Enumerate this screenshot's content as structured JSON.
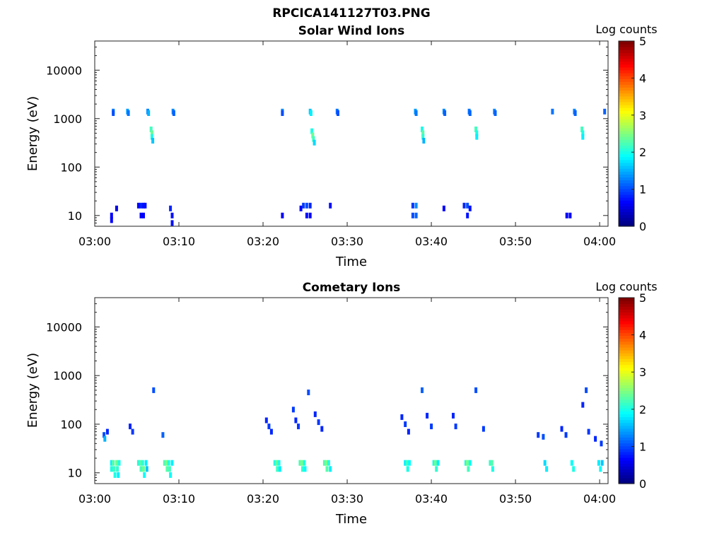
{
  "figure_title": "RPCICA141127T03.PNG",
  "chart_data": [
    {
      "type": "heatmap",
      "title": "Solar Wind Ions",
      "xlabel": "Time",
      "ylabel": "Energy (eV)",
      "x_ticks": [
        "03:00",
        "03:10",
        "03:20",
        "03:30",
        "03:40",
        "03:50",
        "04:00"
      ],
      "x_tick_minutes": [
        0,
        10,
        20,
        30,
        40,
        50,
        60
      ],
      "xlim_minutes": [
        0,
        61
      ],
      "y_ticks": [
        "10",
        "100",
        "1000",
        "10000"
      ],
      "y_tick_values": [
        10,
        100,
        1000,
        10000
      ],
      "ylim": [
        6,
        40000
      ],
      "yscale": "log",
      "colorbar": {
        "label": "Log counts",
        "ticks": [
          "0",
          "1",
          "2",
          "3",
          "4",
          "5"
        ],
        "range": [
          0,
          5
        ],
        "colormap": "jet"
      },
      "cells": [
        [
          2.2,
          1400,
          1.2
        ],
        [
          2.2,
          1300,
          1.0
        ],
        [
          3.9,
          1400,
          1.4
        ],
        [
          4.0,
          1300,
          1.2
        ],
        [
          6.3,
          1400,
          1.3
        ],
        [
          6.4,
          1300,
          1.5
        ],
        [
          6.7,
          600,
          2.2
        ],
        [
          6.8,
          500,
          2.4
        ],
        [
          6.8,
          420,
          2.0
        ],
        [
          6.9,
          350,
          1.6
        ],
        [
          9.3,
          1400,
          1.3
        ],
        [
          9.4,
          1300,
          1.1
        ],
        [
          22.3,
          1400,
          1.3
        ],
        [
          22.3,
          1300,
          1.0
        ],
        [
          25.6,
          1400,
          1.6
        ],
        [
          25.7,
          1300,
          1.8
        ],
        [
          25.8,
          550,
          2.0
        ],
        [
          25.9,
          450,
          2.4
        ],
        [
          26.0,
          380,
          2.2
        ],
        [
          26.1,
          320,
          1.7
        ],
        [
          28.8,
          1400,
          1.2
        ],
        [
          28.9,
          1300,
          1.0
        ],
        [
          38.1,
          1400,
          1.4
        ],
        [
          38.2,
          1300,
          1.2
        ],
        [
          38.9,
          600,
          2.0
        ],
        [
          39.0,
          500,
          2.3
        ],
        [
          39.0,
          420,
          2.1
        ],
        [
          39.1,
          350,
          1.5
        ],
        [
          41.5,
          1400,
          1.3
        ],
        [
          41.6,
          1300,
          1.1
        ],
        [
          44.5,
          1400,
          1.2
        ],
        [
          44.6,
          1300,
          1.1
        ],
        [
          45.3,
          600,
          2.2
        ],
        [
          45.4,
          500,
          2.0
        ],
        [
          45.4,
          420,
          1.8
        ],
        [
          47.5,
          1400,
          1.3
        ],
        [
          47.6,
          1300,
          1.1
        ],
        [
          54.4,
          1400,
          1.2
        ],
        [
          57.0,
          1400,
          1.3
        ],
        [
          57.1,
          1300,
          1.1
        ],
        [
          57.9,
          600,
          2.2
        ],
        [
          58.0,
          500,
          2.0
        ],
        [
          58.0,
          420,
          1.8
        ],
        [
          60.6,
          1400,
          1.1
        ],
        [
          2.0,
          10,
          0.6
        ],
        [
          2.0,
          8,
          0.6
        ],
        [
          2.6,
          14,
          0.5
        ],
        [
          5.2,
          16,
          0.6
        ],
        [
          5.5,
          16,
          0.8
        ],
        [
          5.8,
          16,
          0.7
        ],
        [
          6.0,
          16,
          0.7
        ],
        [
          5.5,
          10,
          0.6
        ],
        [
          5.8,
          10,
          0.6
        ],
        [
          9.0,
          14,
          0.8
        ],
        [
          9.2,
          10,
          0.7
        ],
        [
          9.2,
          7,
          0.7
        ],
        [
          22.3,
          10,
          0.6
        ],
        [
          24.5,
          14,
          0.6
        ],
        [
          24.8,
          16,
          0.9
        ],
        [
          25.2,
          16,
          1.0
        ],
        [
          25.2,
          10,
          0.7
        ],
        [
          25.6,
          16,
          0.8
        ],
        [
          25.6,
          10,
          0.6
        ],
        [
          28.0,
          16,
          0.7
        ],
        [
          37.8,
          16,
          0.9
        ],
        [
          37.8,
          10,
          1.0
        ],
        [
          38.2,
          16,
          1.3
        ],
        [
          38.2,
          10,
          1.1
        ],
        [
          41.5,
          14,
          0.6
        ],
        [
          43.9,
          16,
          0.8
        ],
        [
          44.3,
          16,
          1.0
        ],
        [
          44.3,
          10,
          0.7
        ],
        [
          44.6,
          14,
          0.7
        ],
        [
          56.1,
          10,
          0.6
        ],
        [
          56.5,
          10,
          0.6
        ]
      ]
    },
    {
      "type": "heatmap",
      "title": "Cometary Ions",
      "xlabel": "Time",
      "ylabel": "Energy (eV)",
      "x_ticks": [
        "03:00",
        "03:10",
        "03:20",
        "03:30",
        "03:40",
        "03:50",
        "04:00"
      ],
      "x_tick_minutes": [
        0,
        10,
        20,
        30,
        40,
        50,
        60
      ],
      "xlim_minutes": [
        0,
        61
      ],
      "y_ticks": [
        "10",
        "100",
        "1000",
        "10000"
      ],
      "y_tick_values": [
        10,
        100,
        1000,
        10000
      ],
      "ylim": [
        6,
        40000
      ],
      "yscale": "log",
      "colorbar": {
        "label": "Log counts",
        "ticks": [
          "0",
          "1",
          "2",
          "3",
          "4",
          "5"
        ],
        "range": [
          0,
          5
        ],
        "colormap": "jet"
      },
      "cells": [
        [
          1.1,
          60,
          1.0
        ],
        [
          1.2,
          50,
          1.5
        ],
        [
          2.0,
          16,
          1.8
        ],
        [
          2.0,
          12,
          2.0
        ],
        [
          2.2,
          16,
          2.3
        ],
        [
          2.3,
          12,
          2.2
        ],
        [
          2.4,
          9,
          2.0
        ],
        [
          2.6,
          16,
          2.4
        ],
        [
          2.7,
          12,
          2.1
        ],
        [
          2.8,
          9,
          1.8
        ],
        [
          2.9,
          16,
          2.0
        ],
        [
          5.2,
          16,
          2.0
        ],
        [
          5.4,
          16,
          2.3
        ],
        [
          5.5,
          12,
          2.2
        ],
        [
          5.7,
          16,
          2.1
        ],
        [
          5.8,
          12,
          2.4
        ],
        [
          5.9,
          9,
          1.9
        ],
        [
          6.1,
          16,
          1.8
        ],
        [
          6.2,
          12,
          1.6
        ],
        [
          8.3,
          16,
          2.2
        ],
        [
          8.5,
          16,
          2.5
        ],
        [
          8.6,
          12,
          2.3
        ],
        [
          8.8,
          16,
          2.0
        ],
        [
          8.9,
          12,
          2.2
        ],
        [
          9.0,
          9,
          1.9
        ],
        [
          9.2,
          16,
          1.8
        ],
        [
          7.0,
          500,
          1.0
        ],
        [
          8.1,
          60,
          1.1
        ],
        [
          21.4,
          16,
          2.0
        ],
        [
          21.6,
          16,
          2.4
        ],
        [
          21.7,
          12,
          2.2
        ],
        [
          21.9,
          16,
          2.0
        ],
        [
          22.0,
          12,
          1.8
        ],
        [
          24.4,
          16,
          2.2
        ],
        [
          24.6,
          16,
          2.5
        ],
        [
          24.7,
          12,
          2.1
        ],
        [
          24.9,
          16,
          2.0
        ],
        [
          25.0,
          12,
          1.9
        ],
        [
          25.4,
          450,
          1.0
        ],
        [
          27.3,
          16,
          2.2
        ],
        [
          27.5,
          16,
          2.5
        ],
        [
          27.6,
          12,
          2.3
        ],
        [
          27.8,
          16,
          2.0
        ],
        [
          28.0,
          12,
          1.8
        ],
        [
          36.9,
          16,
          1.8
        ],
        [
          37.1,
          16,
          2.2
        ],
        [
          37.2,
          12,
          2.0
        ],
        [
          37.4,
          16,
          1.9
        ],
        [
          38.9,
          500,
          1.1
        ],
        [
          40.3,
          16,
          2.0
        ],
        [
          40.5,
          16,
          2.4
        ],
        [
          40.6,
          12,
          2.1
        ],
        [
          40.8,
          16,
          1.8
        ],
        [
          44.1,
          16,
          2.0
        ],
        [
          44.3,
          16,
          2.5
        ],
        [
          44.4,
          12,
          2.2
        ],
        [
          44.6,
          16,
          1.9
        ],
        [
          45.3,
          500,
          1.0
        ],
        [
          47.0,
          16,
          2.1
        ],
        [
          47.2,
          16,
          2.3
        ],
        [
          47.3,
          12,
          2.0
        ],
        [
          53.5,
          16,
          1.7
        ],
        [
          53.7,
          12,
          1.8
        ],
        [
          56.7,
          16,
          1.9
        ],
        [
          56.9,
          12,
          2.0
        ],
        [
          58.4,
          500,
          1.0
        ],
        [
          59.9,
          16,
          1.8
        ],
        [
          60.1,
          12,
          1.9
        ],
        [
          60.3,
          16,
          1.6
        ],
        [
          20.4,
          120,
          0.8
        ],
        [
          20.7,
          90,
          0.9
        ],
        [
          21.0,
          70,
          0.8
        ],
        [
          23.6,
          200,
          0.9
        ],
        [
          23.9,
          120,
          0.8
        ],
        [
          24.2,
          90,
          0.9
        ],
        [
          26.2,
          160,
          0.8
        ],
        [
          26.6,
          110,
          0.9
        ],
        [
          27.0,
          80,
          0.8
        ],
        [
          36.5,
          140,
          0.8
        ],
        [
          36.9,
          100,
          0.9
        ],
        [
          37.3,
          70,
          0.8
        ],
        [
          39.5,
          150,
          0.8
        ],
        [
          40.0,
          90,
          0.9
        ],
        [
          42.6,
          150,
          0.8
        ],
        [
          42.9,
          90,
          0.9
        ],
        [
          46.2,
          80,
          0.9
        ],
        [
          52.7,
          60,
          0.9
        ],
        [
          53.3,
          55,
          1.0
        ],
        [
          55.5,
          80,
          0.8
        ],
        [
          56.0,
          60,
          0.9
        ],
        [
          58.0,
          250,
          0.8
        ],
        [
          58.7,
          70,
          0.9
        ],
        [
          59.5,
          50,
          0.8
        ],
        [
          60.2,
          40,
          0.9
        ],
        [
          4.2,
          90,
          0.8
        ],
        [
          4.5,
          70,
          0.9
        ],
        [
          1.5,
          70,
          0.8
        ]
      ]
    }
  ]
}
